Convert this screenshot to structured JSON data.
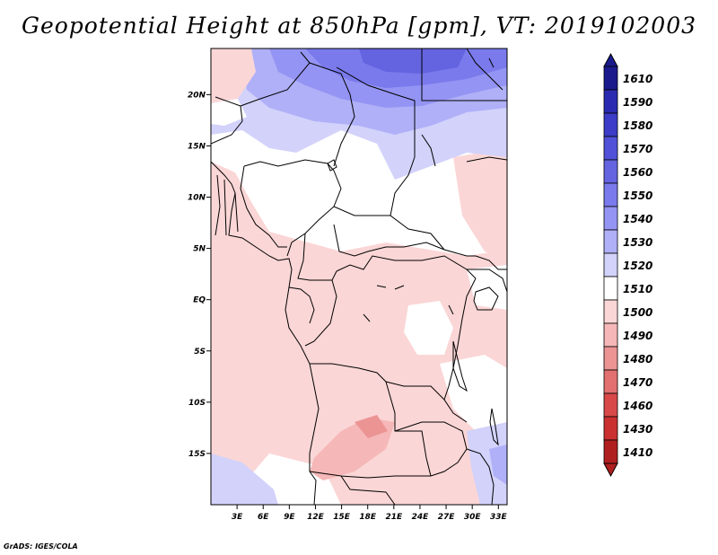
{
  "title": "Geopotential Height at 850hPa [gpm], VT: 2019102003",
  "credit": "GrADS: IGES/COLA",
  "chart_data": {
    "type": "heatmap",
    "variable": "Geopotential Height",
    "level": "850hPa",
    "units": "gpm",
    "valid_time": "2019102003",
    "lon_range": [
      0,
      34
    ],
    "lat_range": [
      -20,
      24.5
    ],
    "x_ticks": [
      "3E",
      "6E",
      "9E",
      "12E",
      "15E",
      "18E",
      "21E",
      "24E",
      "27E",
      "30E",
      "33E"
    ],
    "x_tick_values": [
      3,
      6,
      9,
      12,
      15,
      18,
      21,
      24,
      27,
      30,
      33
    ],
    "y_ticks": [
      "20N",
      "15N",
      "10N",
      "5N",
      "EQ",
      "5S",
      "10S",
      "15S"
    ],
    "y_tick_values": [
      20,
      15,
      10,
      5,
      0,
      -5,
      -10,
      -15
    ],
    "colorbar": {
      "levels": [
        "1610",
        "1590",
        "1580",
        "1570",
        "1560",
        "1550",
        "1540",
        "1530",
        "1520",
        "1510",
        "1500",
        "1490",
        "1480",
        "1470",
        "1460",
        "1430",
        "1410"
      ],
      "colors": [
        "#1a1a8c",
        "#2a2ab0",
        "#3c3cc8",
        "#5050d8",
        "#6464e0",
        "#7a7aec",
        "#9494f4",
        "#b0b0f8",
        "#d2d2fb",
        "#ffffff",
        "#fbd6d6",
        "#f5b7b7",
        "#ec9494",
        "#e27070",
        "#d84848",
        "#cb3030",
        "#b01f1f"
      ]
    }
  }
}
